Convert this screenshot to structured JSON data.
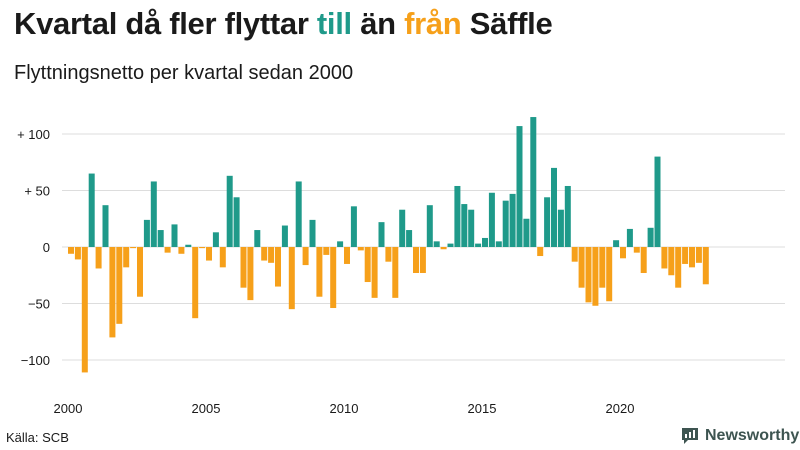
{
  "title": {
    "part1": "Kvartal då fler flyttar ",
    "word_till": "till",
    "part2": " än ",
    "word_fran": "från",
    "part3": " Säffle"
  },
  "subtitle": "Flyttningsnetto per kvartal sedan 2000",
  "source": "Källa: SCB",
  "brand": {
    "name": "Newsworthy",
    "icon": "newsworthy-logo-icon"
  },
  "colors": {
    "positive": "#1f9a8a",
    "negative": "#f6a01a",
    "text": "#1a1a1a",
    "grid": "#dddddd",
    "brand": "#3d5450"
  },
  "chart_data": {
    "type": "bar",
    "title": "Flyttningsnetto per kvartal sedan 2000",
    "xlabel": "",
    "ylabel": "",
    "x_start": "2000 Q1",
    "x_ticks": [
      "2000",
      "2005",
      "2010",
      "2015",
      "2020"
    ],
    "y_ticks": [
      {
        "value": 100,
        "label": "+ 100"
      },
      {
        "value": 50,
        "label": "+  50"
      },
      {
        "value": 0,
        "label": "0"
      },
      {
        "value": -50,
        "label": "−50"
      },
      {
        "value": -100,
        "label": "−100"
      }
    ],
    "ylim": [
      -112,
      120
    ],
    "grid": true,
    "values": [
      -6,
      -11,
      -111,
      65,
      -19,
      37,
      -80,
      -68,
      -18,
      -1,
      -44,
      24,
      58,
      15,
      -5,
      20,
      -6,
      2,
      -63,
      -1,
      -12,
      13,
      -18,
      63,
      44,
      -36,
      -47,
      15,
      -12,
      -14,
      -35,
      19,
      -55,
      58,
      -16,
      24,
      -44,
      -7,
      -54,
      5,
      -15,
      36,
      -3,
      -31,
      -45,
      22,
      -13,
      -45,
      33,
      15,
      -23,
      -23,
      37,
      5,
      -2,
      3,
      54,
      38,
      33,
      3,
      8,
      48,
      5,
      41,
      47,
      107,
      25,
      115,
      -8,
      44,
      70,
      33,
      54,
      -13,
      -36,
      -49,
      -52,
      -36,
      -48,
      6,
      -10,
      16,
      -5,
      -23,
      17,
      80,
      -19,
      -25,
      -36,
      -15,
      -18,
      -14,
      -33
    ]
  }
}
